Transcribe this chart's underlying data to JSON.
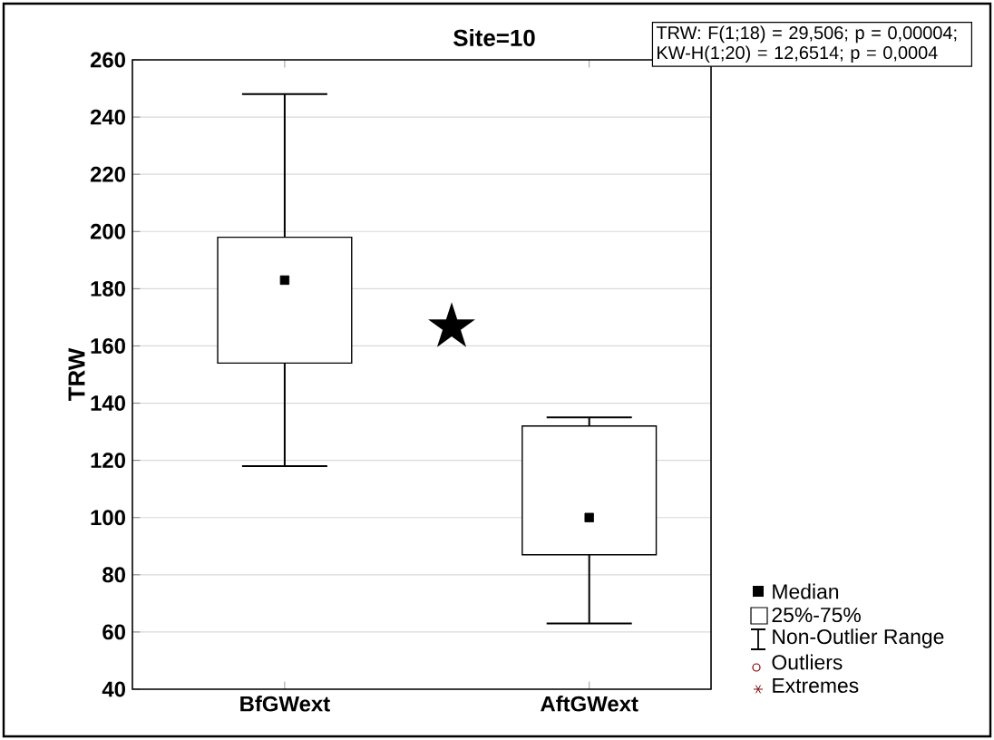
{
  "chart_data": {
    "type": "box",
    "title": "Site=10",
    "ylabel": "TRW",
    "categories": [
      "BfGWext",
      "AftGWext"
    ],
    "boxes": [
      {
        "low": 118,
        "q1": 154,
        "median": 183,
        "q3": 198,
        "high": 248
      },
      {
        "low": 63,
        "q1": 87,
        "median": 100,
        "q3": 132,
        "high": 135
      }
    ],
    "color": "#000000",
    "ylim": [
      40,
      260
    ],
    "yticks": [
      40,
      60,
      80,
      100,
      120,
      140,
      160,
      180,
      200,
      220,
      240,
      260
    ],
    "grid": "y",
    "annotations": [
      "TRW:   F(1;18) = 29,506; p = 0,00004; KW-H(1;20) = 12,6514; p = 0,0004",
      "★",
      "Median",
      "25%-75%",
      "Non-Outlier Range",
      "Outliers",
      "Extremes"
    ]
  }
}
